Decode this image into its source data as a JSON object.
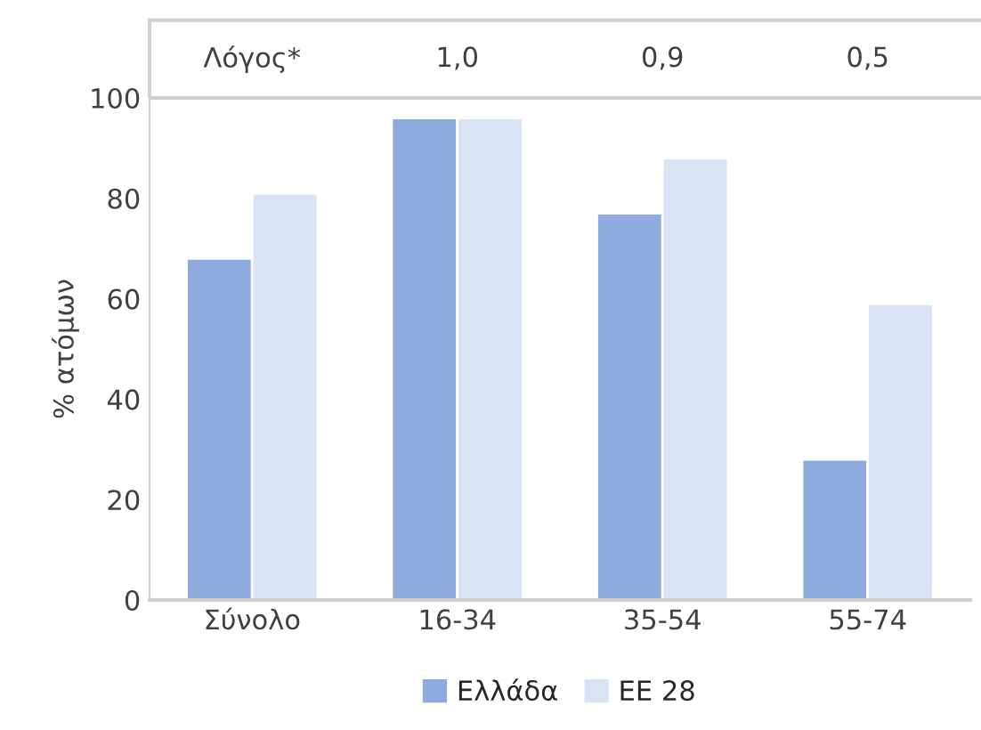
{
  "chart_data": {
    "type": "bar",
    "ylabel": "% ατόμων",
    "categories": [
      "Σύνολο",
      "16-34",
      "35-54",
      "55-74"
    ],
    "series": [
      {
        "name": "Ελλάδα",
        "color": "#8faadc",
        "values": [
          68,
          96,
          77,
          28
        ]
      },
      {
        "name": "ΕΕ 28",
        "color": "#dae3f3",
        "values": [
          81,
          96,
          88,
          59
        ]
      }
    ],
    "ylim": [
      0,
      100
    ],
    "yticks": [
      0,
      20,
      40,
      60,
      80,
      100
    ],
    "grid": false,
    "legend": "bottom",
    "annotations": [
      "Λόγος*",
      "1,0",
      "0,9",
      "0,5"
    ]
  }
}
